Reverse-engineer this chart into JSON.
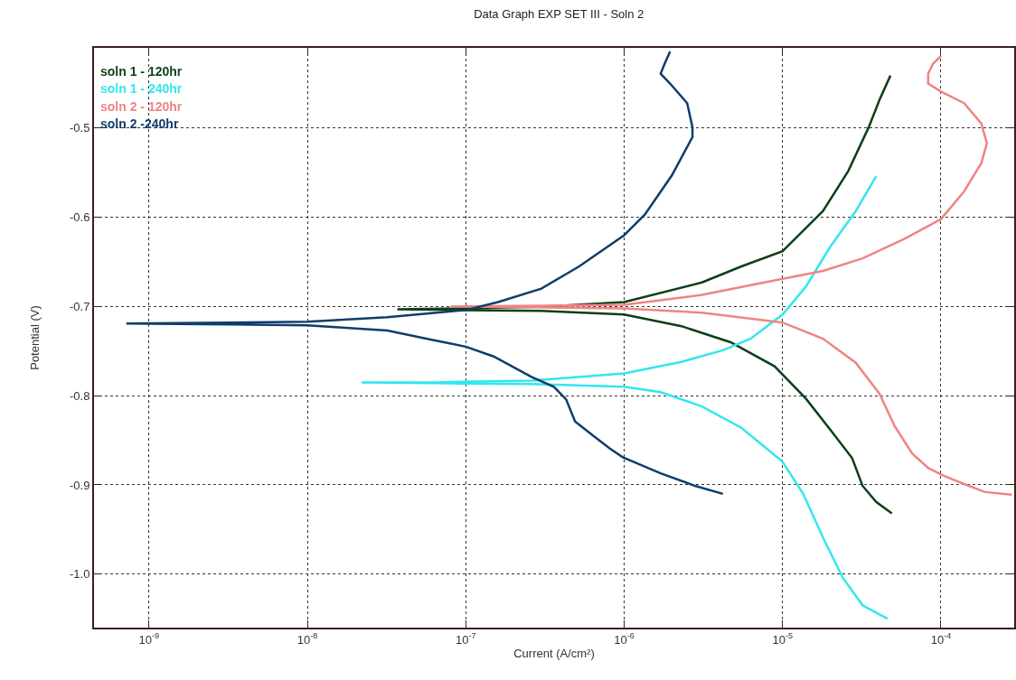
{
  "chart_data": {
    "type": "line",
    "title": "Data Graph EXP SET III - Soln 2",
    "xlabel": "Current (A/cm²)",
    "ylabel": "Potential (V)",
    "log": "x",
    "grid": true,
    "legend": "top left",
    "marker": "none",
    "line_style": "solid",
    "xlim": [
      4.5e-10,
      0.00029
    ],
    "ylim": [
      -1.06,
      -0.41
    ],
    "xticks": [
      {
        "value": 1e-09,
        "label": "10$^{-9}$"
      },
      {
        "value": 1e-08,
        "label": "10$^{-8}$"
      },
      {
        "value": 1e-07,
        "label": "10$^{-7}$"
      },
      {
        "value": 1e-06,
        "label": "10$^{-6}$"
      },
      {
        "value": 1e-05,
        "label": "10$^{-5}$"
      },
      {
        "value": 0.0001,
        "label": "10$^{-4}$"
      }
    ],
    "yticks": [
      -0.5,
      -0.6,
      -0.7,
      -0.8,
      -0.9,
      {
        "value": -1,
        "label": "-1.0"
      }
    ],
    "series": [
      {
        "name": "soln 1 - 120hr",
        "color": "#0d3f17",
        "x": [
          4.9e-05,
          3.9e-05,
          3.2e-05,
          2.75e-05,
          2e-05,
          1.4e-05,
          8.9e-06,
          4.7e-06,
          2.3e-06,
          1e-06,
          3e-07,
          1e-07,
          3.7e-08,
          1e-07,
          3.2e-07,
          1e-06,
          3.1e-06,
          5.5e-06,
          1e-05,
          1.8e-05,
          2.6e-05,
          3.5e-05,
          4.1e-05,
          4.8e-05
        ],
        "values": [
          -0.932,
          -0.919,
          -0.901,
          -0.87,
          -0.838,
          -0.803,
          -0.767,
          -0.74,
          -0.722,
          -0.709,
          -0.705,
          -0.704,
          -0.703,
          -0.702,
          -0.7,
          -0.695,
          -0.673,
          -0.655,
          -0.638,
          -0.593,
          -0.548,
          -0.499,
          -0.468,
          -0.441
        ]
      },
      {
        "name": "soln 1 - 240hr",
        "color": "#33e6ee",
        "x": [
          4.6e-05,
          3.2e-05,
          2.4e-05,
          1.8e-05,
          1.35e-05,
          1e-05,
          5.5e-06,
          3.1e-06,
          1.7e-06,
          1e-06,
          2.6e-07,
          6.3e-08,
          2.2e-08,
          6.3e-08,
          2.6e-07,
          1e-06,
          2.3e-06,
          4.2e-06,
          6.3e-06,
          1e-05,
          1.4e-05,
          2e-05,
          2.9e-05,
          3.9e-05
        ],
        "values": [
          -1.05,
          -1.035,
          -1.004,
          -0.959,
          -0.91,
          -0.874,
          -0.836,
          -0.812,
          -0.796,
          -0.79,
          -0.787,
          -0.786,
          -0.785,
          -0.785,
          -0.783,
          -0.775,
          -0.762,
          -0.749,
          -0.736,
          -0.709,
          -0.678,
          -0.633,
          -0.593,
          -0.554
        ]
      },
      {
        "name": "soln 2 - 120hr",
        "color": "#ee8583",
        "x": [
          0.00028,
          0.00019,
          0.00015,
          0.000105,
          8.3e-05,
          6.6e-05,
          5.1e-05,
          4.1e-05,
          2.9e-05,
          1.8e-05,
          1e-05,
          3.1e-06,
          1e-06,
          3.2e-07,
          8e-08,
          3.2e-07,
          1e-06,
          3.1e-06,
          1e-05,
          1.8e-05,
          3.2e-05,
          5.9e-05,
          0.0001,
          0.00014,
          0.00018,
          0.000195,
          0.00018,
          0.00014,
          0.0001,
          8.3e-05,
          8.3e-05,
          8.9e-05,
          0.0001
        ],
        "values": [
          -0.911,
          -0.908,
          -0.901,
          -0.89,
          -0.881,
          -0.865,
          -0.834,
          -0.798,
          -0.763,
          -0.736,
          -0.718,
          -0.707,
          -0.702,
          -0.701,
          -0.7,
          -0.699,
          -0.698,
          -0.687,
          -0.669,
          -0.66,
          -0.646,
          -0.624,
          -0.602,
          -0.571,
          -0.539,
          -0.517,
          -0.495,
          -0.472,
          -0.459,
          -0.45,
          -0.439,
          -0.428,
          -0.419
        ]
      },
      {
        "name": "soln 2 -240hr",
        "color": "#0f3d6b",
        "x": [
          4.2e-06,
          2.8e-06,
          1.7e-06,
          9.8e-07,
          8.1e-07,
          6.3e-07,
          4.9e-07,
          4.3e-07,
          3.6e-07,
          2.6e-07,
          1.5e-07,
          1e-07,
          6e-08,
          3.2e-08,
          1e-08,
          3.2e-09,
          7.2e-10,
          3.2e-09,
          1e-08,
          3.2e-08,
          1e-07,
          1.6e-07,
          3e-07,
          5.2e-07,
          1e-06,
          1.35e-06,
          2e-06,
          2.7e-06,
          2.7e-06,
          2.5e-06,
          1.95e-06,
          1.7e-06,
          1.8e-06,
          1.95e-06
        ],
        "values": [
          -0.91,
          -0.901,
          -0.887,
          -0.869,
          -0.859,
          -0.844,
          -0.829,
          -0.804,
          -0.79,
          -0.779,
          -0.756,
          -0.745,
          -0.737,
          -0.727,
          -0.721,
          -0.72,
          -0.719,
          -0.718,
          -0.717,
          -0.712,
          -0.704,
          -0.695,
          -0.68,
          -0.655,
          -0.62,
          -0.597,
          -0.553,
          -0.51,
          -0.499,
          -0.472,
          -0.45,
          -0.439,
          -0.428,
          -0.414
        ]
      }
    ]
  }
}
